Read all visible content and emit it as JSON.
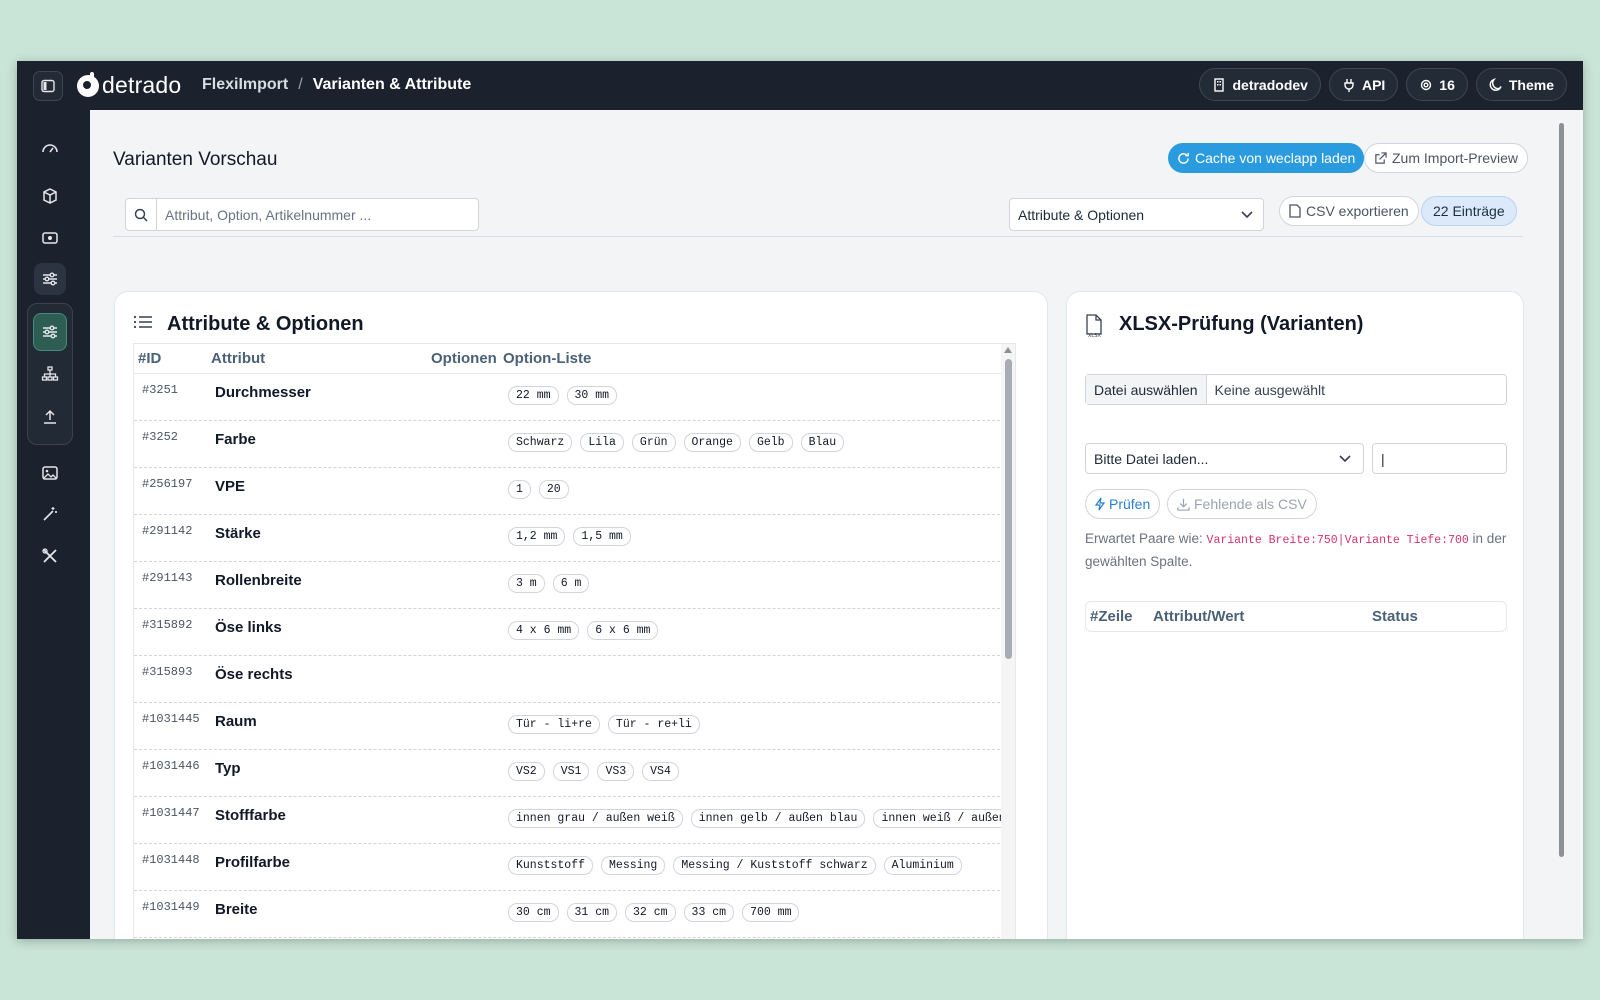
{
  "topbar": {
    "brand": "detrado",
    "breadcrumb": [
      "FlexiImport",
      "Varianten & Attribute"
    ],
    "breadcrumb_sep": "/",
    "pills": {
      "workspace": "detradodev",
      "api": "API",
      "count": "16",
      "theme": "Theme"
    }
  },
  "sidebar": {
    "icons": [
      "dashboard-icon",
      "box-icon",
      "wallet-icon",
      "sliders-icon",
      "sliders-icon",
      "sitemap-icon",
      "upload-icon",
      "image-icon",
      "magic-wand-icon",
      "tools-icon"
    ],
    "active_color": "#2e5e53"
  },
  "header": {
    "title": "Varianten Vorschau",
    "cache_button": "Cache von weclapp laden",
    "import_button": "Zum Import-Preview",
    "search_placeholder": "Attribut, Option, Artikelnummer ...",
    "view_select": "Attribute & Optionen",
    "csv_button": "CSV exportieren",
    "count_badge": "22 Einträge"
  },
  "left_card": {
    "title": "Attribute & Optionen",
    "columns": {
      "id": "#ID",
      "attr": "Attribut",
      "opt": "Optionen",
      "list": "Option-Liste"
    },
    "rows": [
      {
        "id": "#3251",
        "name": "Durchmesser",
        "options": [
          "22 mm",
          "30 mm"
        ]
      },
      {
        "id": "#3252",
        "name": "Farbe",
        "options": [
          "Schwarz",
          "Lila",
          "Grün",
          "Orange",
          "Gelb",
          "Blau"
        ]
      },
      {
        "id": "#256197",
        "name": "VPE",
        "options": [
          "1",
          "20"
        ]
      },
      {
        "id": "#291142",
        "name": "Stärke",
        "options": [
          "1,2 mm",
          "1,5 mm"
        ]
      },
      {
        "id": "#291143",
        "name": "Rollenbreite",
        "options": [
          "3 m",
          "6 m"
        ]
      },
      {
        "id": "#315892",
        "name": "Öse links",
        "options": [
          "4 x 6 mm",
          "6 x 6 mm"
        ]
      },
      {
        "id": "#315893",
        "name": "Öse rechts",
        "options": []
      },
      {
        "id": "#1031445",
        "name": "Raum",
        "options": [
          "Tür - li+re",
          "Tür - re+li"
        ]
      },
      {
        "id": "#1031446",
        "name": "Typ",
        "options": [
          "VS2",
          "VS1",
          "VS3",
          "VS4"
        ]
      },
      {
        "id": "#1031447",
        "name": "Stofffarbe",
        "options": [
          "innen grau / außen weiß",
          "innen gelb / außen blau",
          "innen weiß / außen w"
        ]
      },
      {
        "id": "#1031448",
        "name": "Profilfarbe",
        "options": [
          "Kunststoff",
          "Messing",
          "Messing / Kuststoff schwarz",
          "Aluminium"
        ]
      },
      {
        "id": "#1031449",
        "name": "Breite",
        "options": [
          "30 cm",
          "31 cm",
          "32 cm",
          "33 cm",
          "700 mm"
        ]
      }
    ]
  },
  "right_card": {
    "title": "XLSX-Prüfung (Varianten)",
    "file_button": "Datei auswählen",
    "file_value": "Keine ausgewählt",
    "column_select": "Bitte Datei laden...",
    "text_value": "|",
    "check_button": "Prüfen",
    "missing_button": "Fehlende als CSV",
    "hint_prefix": "Erwartet Paare wie: ",
    "hint_code": "Variante Breite:750|Variante Tiefe:700",
    "hint_suffix": " in der gewählten Spalte.",
    "columns": {
      "row": "#Zeile",
      "attr": "Attribut/Wert",
      "status": "Status"
    }
  }
}
